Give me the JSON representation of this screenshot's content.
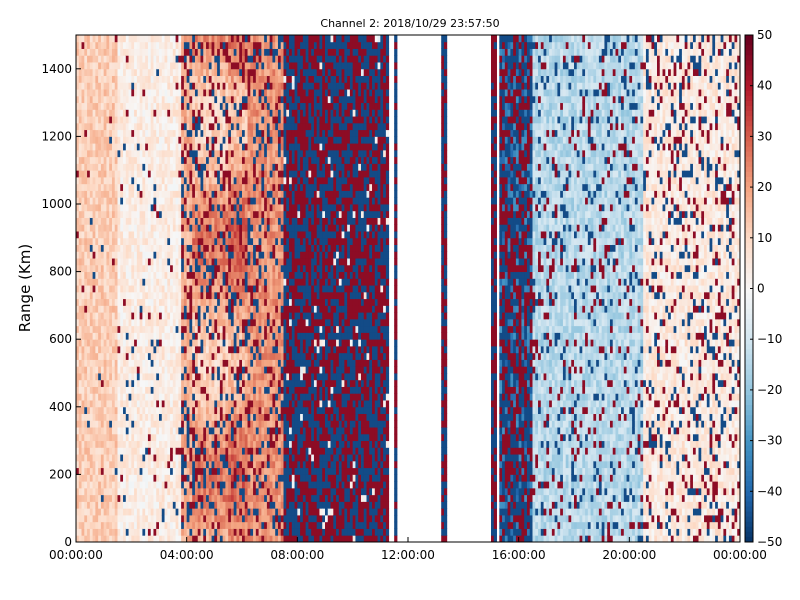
{
  "chart_data": {
    "type": "heatmap",
    "title": "Channel 2: 2018/10/29 23:57:50",
    "xlabel": "",
    "ylabel": "Range (Km)",
    "x_tick_labels": [
      "00:00:00",
      "04:00:00",
      "08:00:00",
      "12:00:00",
      "16:00:00",
      "20:00:00",
      "00:00:00"
    ],
    "x_tick_hours": [
      0,
      4,
      8,
      12,
      16,
      20,
      24
    ],
    "xlim_hours": [
      0,
      24
    ],
    "y_ticks": [
      0,
      200,
      400,
      600,
      800,
      1000,
      1200,
      1400
    ],
    "ylim": [
      0,
      1500
    ],
    "colorbar": {
      "colormap": "RdBu_r",
      "min": -50,
      "max": 50,
      "ticks": [
        50,
        40,
        30,
        20,
        10,
        0,
        -10,
        -20,
        -30,
        -40,
        -50
      ]
    },
    "grid": false,
    "columns_hours": 24,
    "range_bins": 75,
    "regions": [
      {
        "start_hour": 0.0,
        "end_hour": 1.5,
        "mean": 12,
        "noise": 0.03,
        "note": "light red background"
      },
      {
        "start_hour": 1.5,
        "end_hour": 3.8,
        "mean": 4,
        "noise": 0.06,
        "note": "pale, mixed light blue/red"
      },
      {
        "start_hour": 3.8,
        "end_hour": 5.5,
        "mean": 18,
        "noise": 0.3
      },
      {
        "start_hour": 5.5,
        "end_hour": 7.5,
        "mean": 22,
        "noise": 0.3,
        "note": "orange-red band"
      },
      {
        "start_hour": 7.5,
        "end_hour": 11.3,
        "mean": 0,
        "noise": 0.97,
        "note": "saturated noise"
      },
      {
        "start_hour": 11.3,
        "end_hour": 15.3,
        "mean": null,
        "note": "mostly missing with a few stripes"
      },
      {
        "start_hour": 15.3,
        "end_hour": 16.5,
        "mean": -35,
        "noise": 0.8
      },
      {
        "start_hour": 16.5,
        "end_hour": 20.5,
        "mean": -14,
        "noise": 0.18,
        "note": "light blue"
      },
      {
        "start_hour": 20.5,
        "end_hour": 24.0,
        "mean": 5,
        "noise": 0.25,
        "note": "mixed light red/blue"
      }
    ]
  }
}
